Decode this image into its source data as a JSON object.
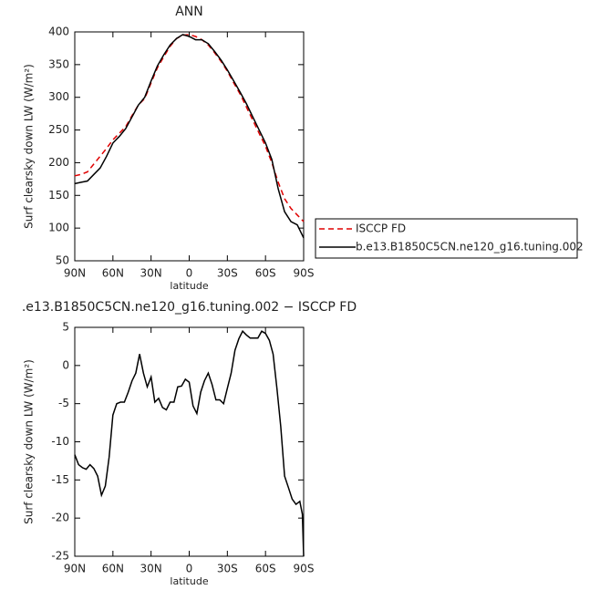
{
  "chart_data": [
    {
      "type": "line",
      "title": "ANN",
      "x_label": "latitude",
      "y_label": "Surf clearsky down LW (W/m²)",
      "x": [
        90,
        85,
        80,
        75,
        70,
        65,
        60,
        55,
        50,
        45,
        40,
        35,
        30,
        25,
        20,
        15,
        10,
        5,
        0,
        -5,
        -10,
        -15,
        -20,
        -25,
        -30,
        -35,
        -40,
        -45,
        -50,
        -55,
        -60,
        -65,
        -70,
        -75,
        -80,
        -85,
        -90
      ],
      "series": [
        {
          "name": "ISCCP FD",
          "color": "#e00000",
          "dash": true,
          "values": [
            180,
            182,
            186,
            198,
            210,
            222,
            235,
            245,
            255,
            272,
            288,
            298,
            322,
            345,
            362,
            378,
            390,
            395,
            396,
            393,
            388,
            380,
            368,
            355,
            340,
            322,
            305,
            285,
            265,
            245,
            225,
            200,
            170,
            145,
            130,
            120,
            110
          ]
        },
        {
          "name": "b.e13.B1850C5CN.ne120_g16.tuning.002",
          "color": "#000000",
          "dash": false,
          "values": [
            168,
            170,
            172,
            182,
            192,
            210,
            230,
            240,
            252,
            270,
            288,
            300,
            325,
            348,
            365,
            380,
            390,
            396,
            393,
            388,
            388,
            382,
            370,
            357,
            342,
            325,
            308,
            290,
            270,
            250,
            230,
            205,
            160,
            125,
            110,
            105,
            85
          ]
        }
      ],
      "xlim": [
        90,
        -90
      ],
      "xticks": [
        {
          "value": 90,
          "label": "90N"
        },
        {
          "value": 60,
          "label": "60N"
        },
        {
          "value": 30,
          "label": "30N"
        },
        0,
        {
          "value": -30,
          "label": "30S"
        },
        {
          "value": -60,
          "label": "60S"
        },
        {
          "value": -90,
          "label": "90S"
        }
      ],
      "ylim": [
        50,
        400
      ],
      "yticks": [
        50,
        100,
        150,
        200,
        250,
        300,
        350,
        400
      ],
      "legend": "right"
    },
    {
      "type": "line",
      "title": ".e13.B1850C5CN.ne120_g16.tuning.002 − ISCCP FD",
      "x_label": "latitude",
      "y_label": "Surf clearsky down LW (W/m²)",
      "x": [
        90,
        87,
        84,
        81,
        78,
        75,
        72,
        69,
        66,
        63,
        60,
        57,
        54,
        51,
        48,
        45,
        42,
        39,
        36,
        33,
        30,
        27,
        24,
        21,
        18,
        15,
        12,
        9,
        6,
        3,
        0,
        -3,
        -6,
        -9,
        -12,
        -15,
        -18,
        -21,
        -24,
        -27,
        -30,
        -33,
        -36,
        -39,
        -42,
        -45,
        -48,
        -51,
        -54,
        -57,
        -60,
        -63,
        -66,
        -69,
        -72,
        -75,
        -78,
        -81,
        -84,
        -87,
        -89,
        -90
      ],
      "series": [
        {
          "color": "#000000",
          "dash": false,
          "values": [
            -11.7,
            -13,
            -13.4,
            -13.6,
            -13,
            -13.5,
            -14.5,
            -17,
            -15.8,
            -12,
            -6.5,
            -5,
            -4.8,
            -4.8,
            -3.5,
            -2,
            -1,
            1.5,
            -1,
            -2.8,
            -1.5,
            -4.8,
            -4.3,
            -5.5,
            -5.8,
            -4.8,
            -4.8,
            -2.8,
            -2.7,
            -1.8,
            -2.2,
            -5.3,
            -6.3,
            -3.5,
            -2,
            -1,
            -2.5,
            -4.5,
            -4.5,
            -5,
            -3,
            -1,
            2,
            3.5,
            4.5,
            4,
            3.6,
            3.6,
            3.6,
            4.5,
            4.2,
            3.3,
            1.5,
            -3,
            -8,
            -14.5,
            -16,
            -17.5,
            -18.2,
            -17.8,
            -19.5,
            -25
          ]
        }
      ],
      "xlim": [
        90,
        -90
      ],
      "xticks": [
        {
          "value": 90,
          "label": "90N"
        },
        {
          "value": 60,
          "label": "60N"
        },
        {
          "value": 30,
          "label": "30N"
        },
        0,
        {
          "value": -30,
          "label": "30S"
        },
        {
          "value": -60,
          "label": "60S"
        },
        {
          "value": -90,
          "label": "90S"
        }
      ],
      "ylim": [
        -25,
        5
      ],
      "yticks": [
        -25,
        -20,
        -15,
        -10,
        -5,
        0,
        5
      ]
    }
  ]
}
